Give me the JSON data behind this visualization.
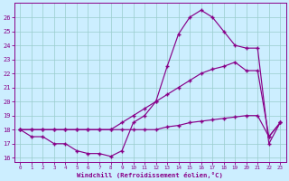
{
  "bg_color": "#cceeff",
  "line_color": "#880088",
  "grid_color": "#99cccc",
  "xlabel": "Windchill (Refroidissement éolien,°C)",
  "xlim": [
    -0.5,
    23.5
  ],
  "ylim": [
    15.7,
    27.0
  ],
  "yticks": [
    16,
    17,
    18,
    19,
    20,
    21,
    22,
    23,
    24,
    25,
    26
  ],
  "xticks": [
    0,
    1,
    2,
    3,
    4,
    5,
    6,
    7,
    8,
    9,
    10,
    11,
    12,
    13,
    14,
    15,
    16,
    17,
    18,
    19,
    20,
    21,
    22,
    23
  ],
  "line1_x": [
    0,
    1,
    2,
    3,
    4,
    5,
    6,
    7,
    8,
    9,
    10,
    11,
    12,
    13,
    14,
    15,
    16,
    17,
    18,
    19,
    20,
    21,
    22,
    23
  ],
  "line1_y": [
    18.0,
    18.0,
    18.0,
    18.0,
    18.0,
    18.0,
    18.0,
    18.0,
    18.0,
    18.0,
    18.0,
    18.0,
    18.0,
    18.2,
    18.3,
    18.5,
    18.6,
    18.7,
    18.8,
    18.9,
    19.0,
    19.0,
    17.5,
    18.5
  ],
  "line2_x": [
    0,
    1,
    2,
    3,
    4,
    5,
    6,
    7,
    8,
    9,
    10,
    11,
    12,
    13,
    14,
    15,
    16,
    17,
    18,
    19,
    20,
    21,
    22,
    23
  ],
  "line2_y": [
    18.0,
    18.0,
    18.0,
    18.0,
    18.0,
    18.0,
    18.0,
    18.0,
    18.0,
    18.5,
    19.0,
    19.5,
    20.0,
    20.5,
    21.0,
    21.5,
    22.0,
    22.3,
    22.5,
    22.8,
    22.2,
    22.2,
    17.5,
    18.5
  ],
  "line3_x": [
    0,
    1,
    2,
    3,
    4,
    5,
    6,
    7,
    8,
    9,
    10,
    11,
    12,
    13,
    14,
    15,
    16,
    17,
    18,
    19,
    20,
    21,
    22,
    23
  ],
  "line3_y": [
    18.0,
    17.5,
    17.5,
    17.0,
    17.0,
    16.5,
    16.3,
    16.3,
    16.1,
    16.5,
    18.5,
    19.0,
    20.0,
    22.5,
    24.8,
    26.0,
    26.5,
    26.0,
    25.0,
    24.0,
    23.8,
    23.8,
    17.0,
    18.5
  ]
}
